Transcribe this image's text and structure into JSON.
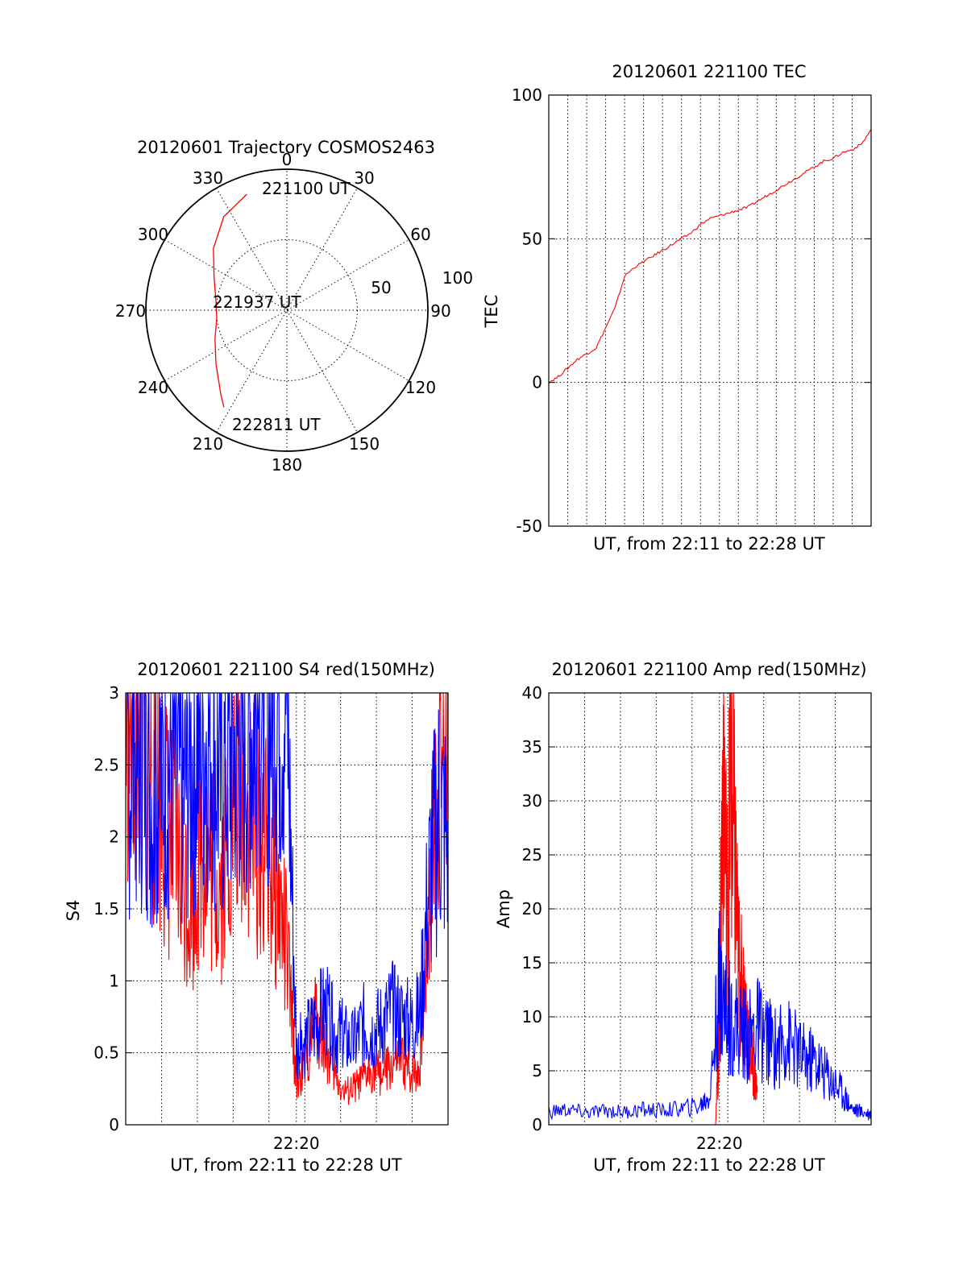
{
  "colors": {
    "series_red": "#ff0000",
    "series_blue": "#0000ff",
    "axes": "#000000",
    "background": "#ffffff"
  },
  "chart_data": [
    {
      "type": "polar",
      "title": "20120601 Trajectory COSMOS2463",
      "angle_labels": [
        "0",
        "30",
        "60",
        "90",
        "120",
        "150",
        "180",
        "210",
        "240",
        "270",
        "300",
        "330"
      ],
      "radial_tick_labels": [
        "50",
        "100"
      ],
      "radial_range": [
        0,
        100
      ],
      "grid": true,
      "series": [
        {
          "color": "#ff0000",
          "points": [
            {
              "az": 341,
              "r": 87
            },
            {
              "az": 326,
              "r": 80
            },
            {
              "az": 310,
              "r": 68
            },
            {
              "az": 295,
              "r": 57
            },
            {
              "az": 279,
              "r": 51
            },
            {
              "az": 264,
              "r": 50
            },
            {
              "az": 248,
              "r": 55
            },
            {
              "az": 233,
              "r": 63
            },
            {
              "az": 218,
              "r": 76
            },
            {
              "az": 213,
              "r": 82
            }
          ]
        }
      ],
      "annotations": [
        {
          "text": "221100 UT",
          "az": 341,
          "r": 87
        },
        {
          "text": "221937 UT",
          "az": 275,
          "r": 15
        },
        {
          "text": "222811 UT",
          "az": 213,
          "r": 82
        }
      ]
    },
    {
      "type": "line",
      "title": "20120601 221100 TEC",
      "xlabel": "UT, from 22:11 to 22:28 UT",
      "ylabel": "TEC",
      "xlim": [
        0,
        17
      ],
      "ylim": [
        -50,
        100
      ],
      "yticks": [
        "-50",
        "0",
        "50",
        "100"
      ],
      "grid": true,
      "series": [
        {
          "color": "#ff0000",
          "x": [
            0,
            0.5,
            1,
            1.5,
            2,
            2.5,
            3,
            3.5,
            4,
            4.5,
            5,
            5.5,
            6,
            6.5,
            7,
            7.5,
            8,
            8.5,
            9,
            9.5,
            10,
            10.5,
            11,
            11.5,
            12,
            12.5,
            13,
            13.5,
            14,
            14.5,
            15,
            15.5,
            16,
            16.5,
            17
          ],
          "y": [
            0,
            2,
            5,
            8,
            10,
            12,
            19,
            26,
            37,
            40,
            42,
            44,
            46,
            48,
            50,
            52,
            55,
            57,
            58,
            59,
            60,
            61,
            63,
            65,
            67,
            69,
            71,
            73,
            75,
            77,
            78,
            80,
            81,
            83,
            88
          ]
        }
      ]
    },
    {
      "type": "line",
      "title": "20120601 221100 S4 red(150MHz)",
      "xlabel": "UT, from 22:11 to 22:28 UT",
      "ylabel": "S4",
      "xlim": [
        0,
        17
      ],
      "ylim": [
        0,
        3
      ],
      "xticks": [
        {
          "x": 9,
          "label": "22:20"
        }
      ],
      "yticks": [
        "0",
        "0.5",
        "1",
        "1.5",
        "2",
        "2.5",
        "3"
      ],
      "grid": true,
      "series": [
        {
          "color": "#ff0000",
          "x": [
            0,
            0.5,
            1,
            1.5,
            2,
            2.5,
            3,
            3.5,
            4,
            4.5,
            5,
            5.5,
            6,
            6.5,
            7,
            7.5,
            8,
            8.5,
            9,
            9.5,
            10,
            10.5,
            11,
            11.5,
            12,
            12.5,
            13,
            13.5,
            14,
            14.5,
            15,
            15.5,
            16,
            16.5,
            17
          ],
          "y": [
            2.9,
            2.7,
            2.6,
            2.4,
            2.2,
            1.9,
            1.7,
            1.6,
            2.0,
            1.8,
            1.7,
            2.1,
            2.4,
            2.2,
            2.0,
            1.9,
            1.6,
            1.2,
            0.3,
            0.4,
            0.75,
            0.55,
            0.35,
            0.22,
            0.25,
            0.3,
            0.4,
            0.35,
            0.4,
            0.45,
            0.35,
            0.4,
            1.5,
            2.6,
            2.8
          ]
        },
        {
          "color": "#0000ff",
          "x": [
            0,
            0.5,
            1,
            1.5,
            2,
            2.5,
            3,
            3.5,
            4,
            4.5,
            5,
            5.5,
            6,
            6.5,
            7,
            7.5,
            8,
            8.5,
            9,
            9.5,
            10,
            10.5,
            11,
            11.5,
            12,
            12.5,
            13,
            13.5,
            14,
            14.5,
            15,
            15.5,
            16,
            16.5,
            17
          ],
          "y": [
            2.6,
            2.5,
            2.7,
            2.2,
            2.5,
            2.6,
            2.3,
            2.6,
            2.7,
            2.8,
            2.4,
            2.6,
            2.7,
            2.8,
            2.9,
            3.0,
            3.0,
            3.0,
            0.5,
            0.6,
            0.7,
            0.8,
            0.65,
            0.6,
            0.55,
            0.7,
            0.65,
            0.7,
            0.8,
            0.75,
            0.7,
            0.75,
            1.7,
            2.2,
            2.0
          ]
        }
      ]
    },
    {
      "type": "line",
      "title": "20120601 221100 Amp red(150MHz)",
      "xlabel": "UT, from 22:11 to 22:28 UT",
      "ylabel": "Amp",
      "xlim": [
        0,
        17
      ],
      "ylim": [
        0,
        40
      ],
      "xticks": [
        {
          "x": 9,
          "label": "22:20"
        }
      ],
      "yticks": [
        "0",
        "5",
        "10",
        "15",
        "20",
        "25",
        "30",
        "35",
        "40"
      ],
      "grid": true,
      "series": [
        {
          "color": "#ff0000",
          "x": [
            8.8,
            9.0,
            9.2,
            9.4,
            9.6,
            9.8,
            10.0,
            10.2,
            10.4,
            10.6,
            10.8,
            11.0
          ],
          "y": [
            0.5,
            8,
            36,
            20,
            32,
            25,
            15,
            12,
            10,
            8,
            5,
            3
          ]
        },
        {
          "color": "#0000ff",
          "x": [
            0,
            1,
            2,
            3,
            4,
            5,
            6,
            7,
            8,
            8.5,
            9.0,
            9.1,
            9.5,
            10,
            10.5,
            11,
            11.5,
            12,
            12.5,
            13,
            13.5,
            14,
            14.5,
            15,
            15.5,
            16,
            16.5,
            17
          ],
          "y": [
            1.2,
            1.4,
            1.1,
            1.3,
            1.2,
            1.4,
            1.3,
            1.5,
            1.8,
            2.8,
            13,
            12,
            10,
            9,
            8,
            9,
            8,
            7,
            8,
            7,
            6,
            6,
            5,
            4,
            3,
            1.5,
            1.2,
            1.0
          ]
        }
      ]
    }
  ]
}
